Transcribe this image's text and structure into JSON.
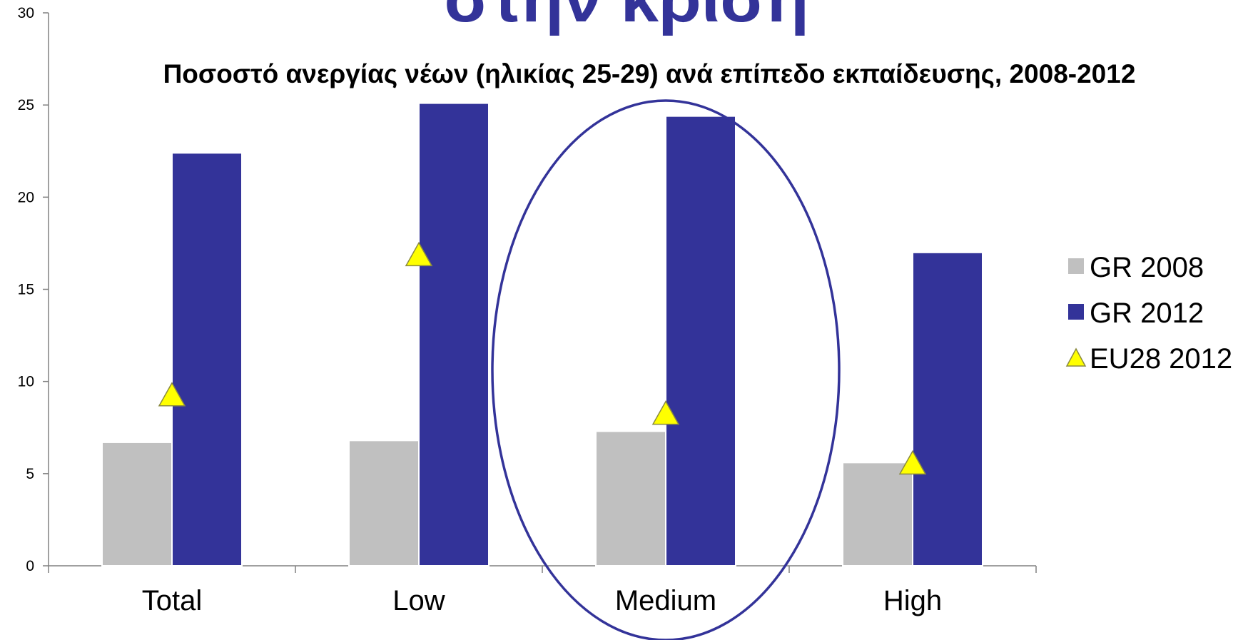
{
  "slide_title": "στην κρίση",
  "chart_data": {
    "type": "bar",
    "title": "Ποσοστό ανεργίας νέων (ηλικίας 25-29) ανά επίπεδο εκπαίδευσης, 2008-2012",
    "xlabel": "",
    "ylabel": "",
    "ylim": [
      0,
      30
    ],
    "yticks": [
      "0",
      "5",
      "10",
      "15",
      "20",
      "25",
      "30"
    ],
    "categories": [
      "Total",
      "Low",
      "Medium",
      "High"
    ],
    "series": [
      {
        "name": "GR 2008",
        "type": "bar",
        "color": "#c0c0c0",
        "values": [
          6.7,
          6.8,
          7.3,
          5.6
        ]
      },
      {
        "name": "GR 2012",
        "type": "bar",
        "color": "#333399",
        "values": [
          22.4,
          25.1,
          24.4,
          17.0
        ]
      },
      {
        "name": "EU28 2012",
        "type": "marker",
        "marker": "triangle",
        "color": "#ffff00",
        "values": [
          9.3,
          16.9,
          8.3,
          5.6
        ]
      }
    ],
    "highlight": {
      "category": "Medium",
      "shape": "ellipse",
      "color": "#333399"
    },
    "legend": {
      "position": "right"
    },
    "grid": false
  }
}
